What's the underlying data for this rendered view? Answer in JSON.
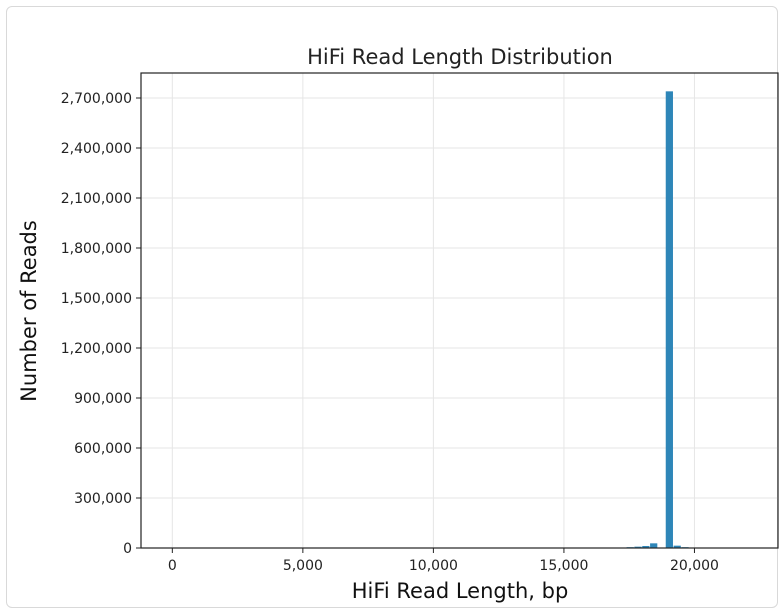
{
  "chart_data": {
    "type": "bar",
    "title": "HiFi Read Length Distribution",
    "xlabel": "HiFi Read Length, bp",
    "ylabel": "Number of Reads",
    "xlim": [
      -1200,
      23200
    ],
    "ylim": [
      0,
      2850000
    ],
    "x_ticks": [
      0,
      5000,
      10000,
      15000,
      20000
    ],
    "x_tick_labels": [
      "0",
      "5,000",
      "10,000",
      "15,000",
      "20,000"
    ],
    "y_ticks": [
      0,
      300000,
      600000,
      900000,
      1200000,
      1500000,
      1800000,
      2100000,
      2400000,
      2700000
    ],
    "y_tick_labels": [
      "0",
      "300,000",
      "600,000",
      "900,000",
      "1,200,000",
      "1,500,000",
      "1,800,000",
      "2,100,000",
      "2,400,000",
      "2,700,000"
    ],
    "grid": true,
    "bar_color": "#2e86b8",
    "bin_width": 300,
    "bins": [
      {
        "x": 17400,
        "value": 5000
      },
      {
        "x": 17700,
        "value": 8000
      },
      {
        "x": 18000,
        "value": 12000
      },
      {
        "x": 18300,
        "value": 28000
      },
      {
        "x": 18900,
        "value": 2740000
      },
      {
        "x": 19200,
        "value": 14000
      },
      {
        "x": 19500,
        "value": 5000
      }
    ]
  }
}
